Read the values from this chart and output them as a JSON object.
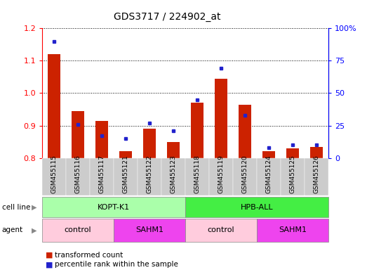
{
  "title": "GDS3717 / 224902_at",
  "samples": [
    "GSM455115",
    "GSM455116",
    "GSM455117",
    "GSM455121",
    "GSM455122",
    "GSM455123",
    "GSM455118",
    "GSM455119",
    "GSM455120",
    "GSM455124",
    "GSM455125",
    "GSM455126"
  ],
  "transformed_count": [
    1.12,
    0.945,
    0.915,
    0.82,
    0.89,
    0.85,
    0.97,
    1.045,
    0.965,
    0.82,
    0.83,
    0.835
  ],
  "percentile_rank": [
    90,
    26,
    17,
    15,
    27,
    21,
    45,
    69,
    33,
    8,
    10,
    10
  ],
  "ylim_left": [
    0.8,
    1.2
  ],
  "ylim_right": [
    0,
    100
  ],
  "yticks_left": [
    0.8,
    0.9,
    1.0,
    1.1,
    1.2
  ],
  "yticks_right": [
    0,
    25,
    50,
    75,
    100
  ],
  "ytick_labels_right": [
    "0",
    "25",
    "50",
    "75",
    "100%"
  ],
  "bar_color": "#cc2200",
  "dot_color": "#2222cc",
  "cell_line_groups": [
    {
      "label": "KOPT-K1",
      "start": 0,
      "end": 6,
      "color": "#aaffaa"
    },
    {
      "label": "HPB-ALL",
      "start": 6,
      "end": 12,
      "color": "#44ee44"
    }
  ],
  "agent_groups": [
    {
      "label": "control",
      "start": 0,
      "end": 3,
      "color": "#ffccdd"
    },
    {
      "label": "SAHM1",
      "start": 3,
      "end": 6,
      "color": "#ee44ee"
    },
    {
      "label": "control",
      "start": 6,
      "end": 9,
      "color": "#ffccdd"
    },
    {
      "label": "SAHM1",
      "start": 9,
      "end": 12,
      "color": "#ee44ee"
    }
  ],
  "legend_red_label": "transformed count",
  "legend_blue_label": "percentile rank within the sample",
  "xtick_bg_color": "#cccccc",
  "cell_line_label": "cell line",
  "agent_label": "agent"
}
